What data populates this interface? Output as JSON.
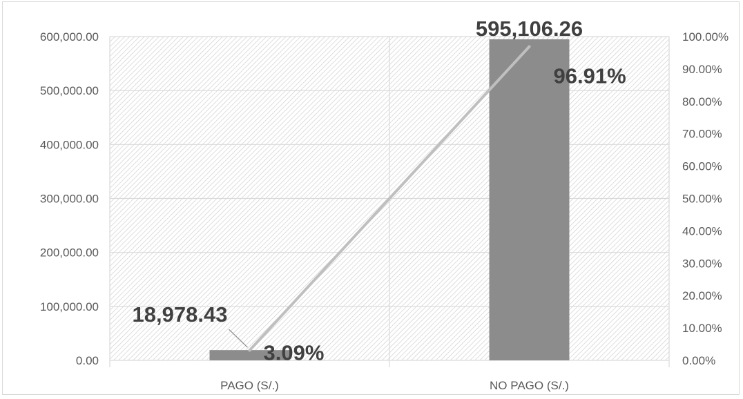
{
  "chart_data": {
    "type": "bar",
    "categories": [
      "PAGO (S/.)",
      "NO PAGO (S/.)"
    ],
    "series": [
      {
        "type": "bar",
        "axis": "left",
        "values": [
          18978.43,
          595106.26
        ],
        "labels": [
          "18,978.43",
          "595,106.26"
        ],
        "color": "#8c8c8c"
      },
      {
        "type": "line",
        "axis": "right",
        "values": [
          3.09,
          96.91
        ],
        "labels": [
          "3.09%",
          "96.91%"
        ],
        "color": "#bfbfbf"
      }
    ],
    "y_left": {
      "ylim": [
        0,
        600000
      ],
      "ticks": [
        "0.00",
        "100,000.00",
        "200,000.00",
        "300,000.00",
        "400,000.00",
        "500,000.00",
        "600,000.00"
      ]
    },
    "y_right": {
      "ylim": [
        0,
        100
      ],
      "ticks": [
        "0.00%",
        "10.00%",
        "20.00%",
        "30.00%",
        "40.00%",
        "50.00%",
        "60.00%",
        "70.00%",
        "80.00%",
        "90.00%",
        "100.00%"
      ]
    },
    "grid": true,
    "legend": "none",
    "colors": {
      "bar": "#8c8c8c",
      "line": "#bfbfbf",
      "gridline": "#d9d9d9",
      "hatch": "#d0d0d0",
      "text": "#595959",
      "label_text": "#404040"
    }
  }
}
